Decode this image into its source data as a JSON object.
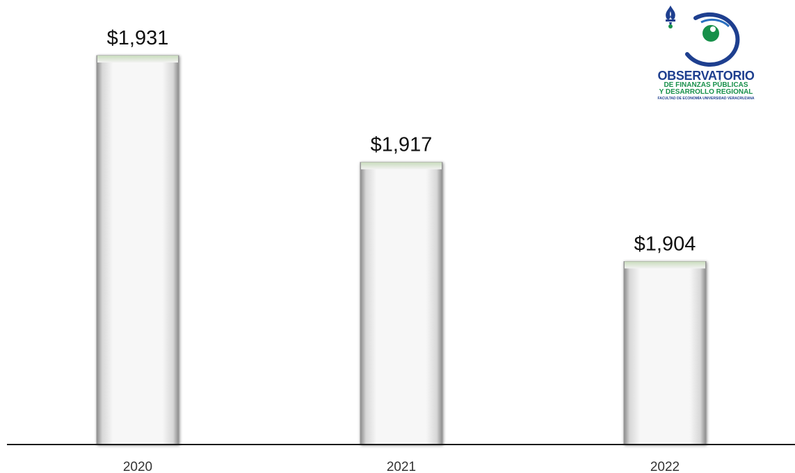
{
  "chart_data": {
    "type": "bar",
    "categories": [
      "2020",
      "2021",
      "2022"
    ],
    "values": [
      1931,
      1917,
      1904
    ],
    "value_labels": [
      "$1,931",
      "$1,917",
      "$1,904"
    ],
    "title": "",
    "xlabel": "",
    "ylabel": "",
    "ylim": [
      1880,
      1935
    ],
    "grid": false,
    "legend": "none"
  },
  "logo": {
    "title": "OBSERVATORIO",
    "line1": "DE FINANZAS PÚBLICAS",
    "line2": "Y DESARROLLO REGIONAL",
    "line3": "FACULTAD DE ECONOMÍA UNIVERSIDAD VERACRUZANA"
  },
  "colors": {
    "bar_fill": "#f4f4f4",
    "bar_top_edge": "#a9c49a",
    "axis": "#1a1a1a",
    "logo_blue": "#1e3f8f",
    "logo_green": "#17904a"
  }
}
